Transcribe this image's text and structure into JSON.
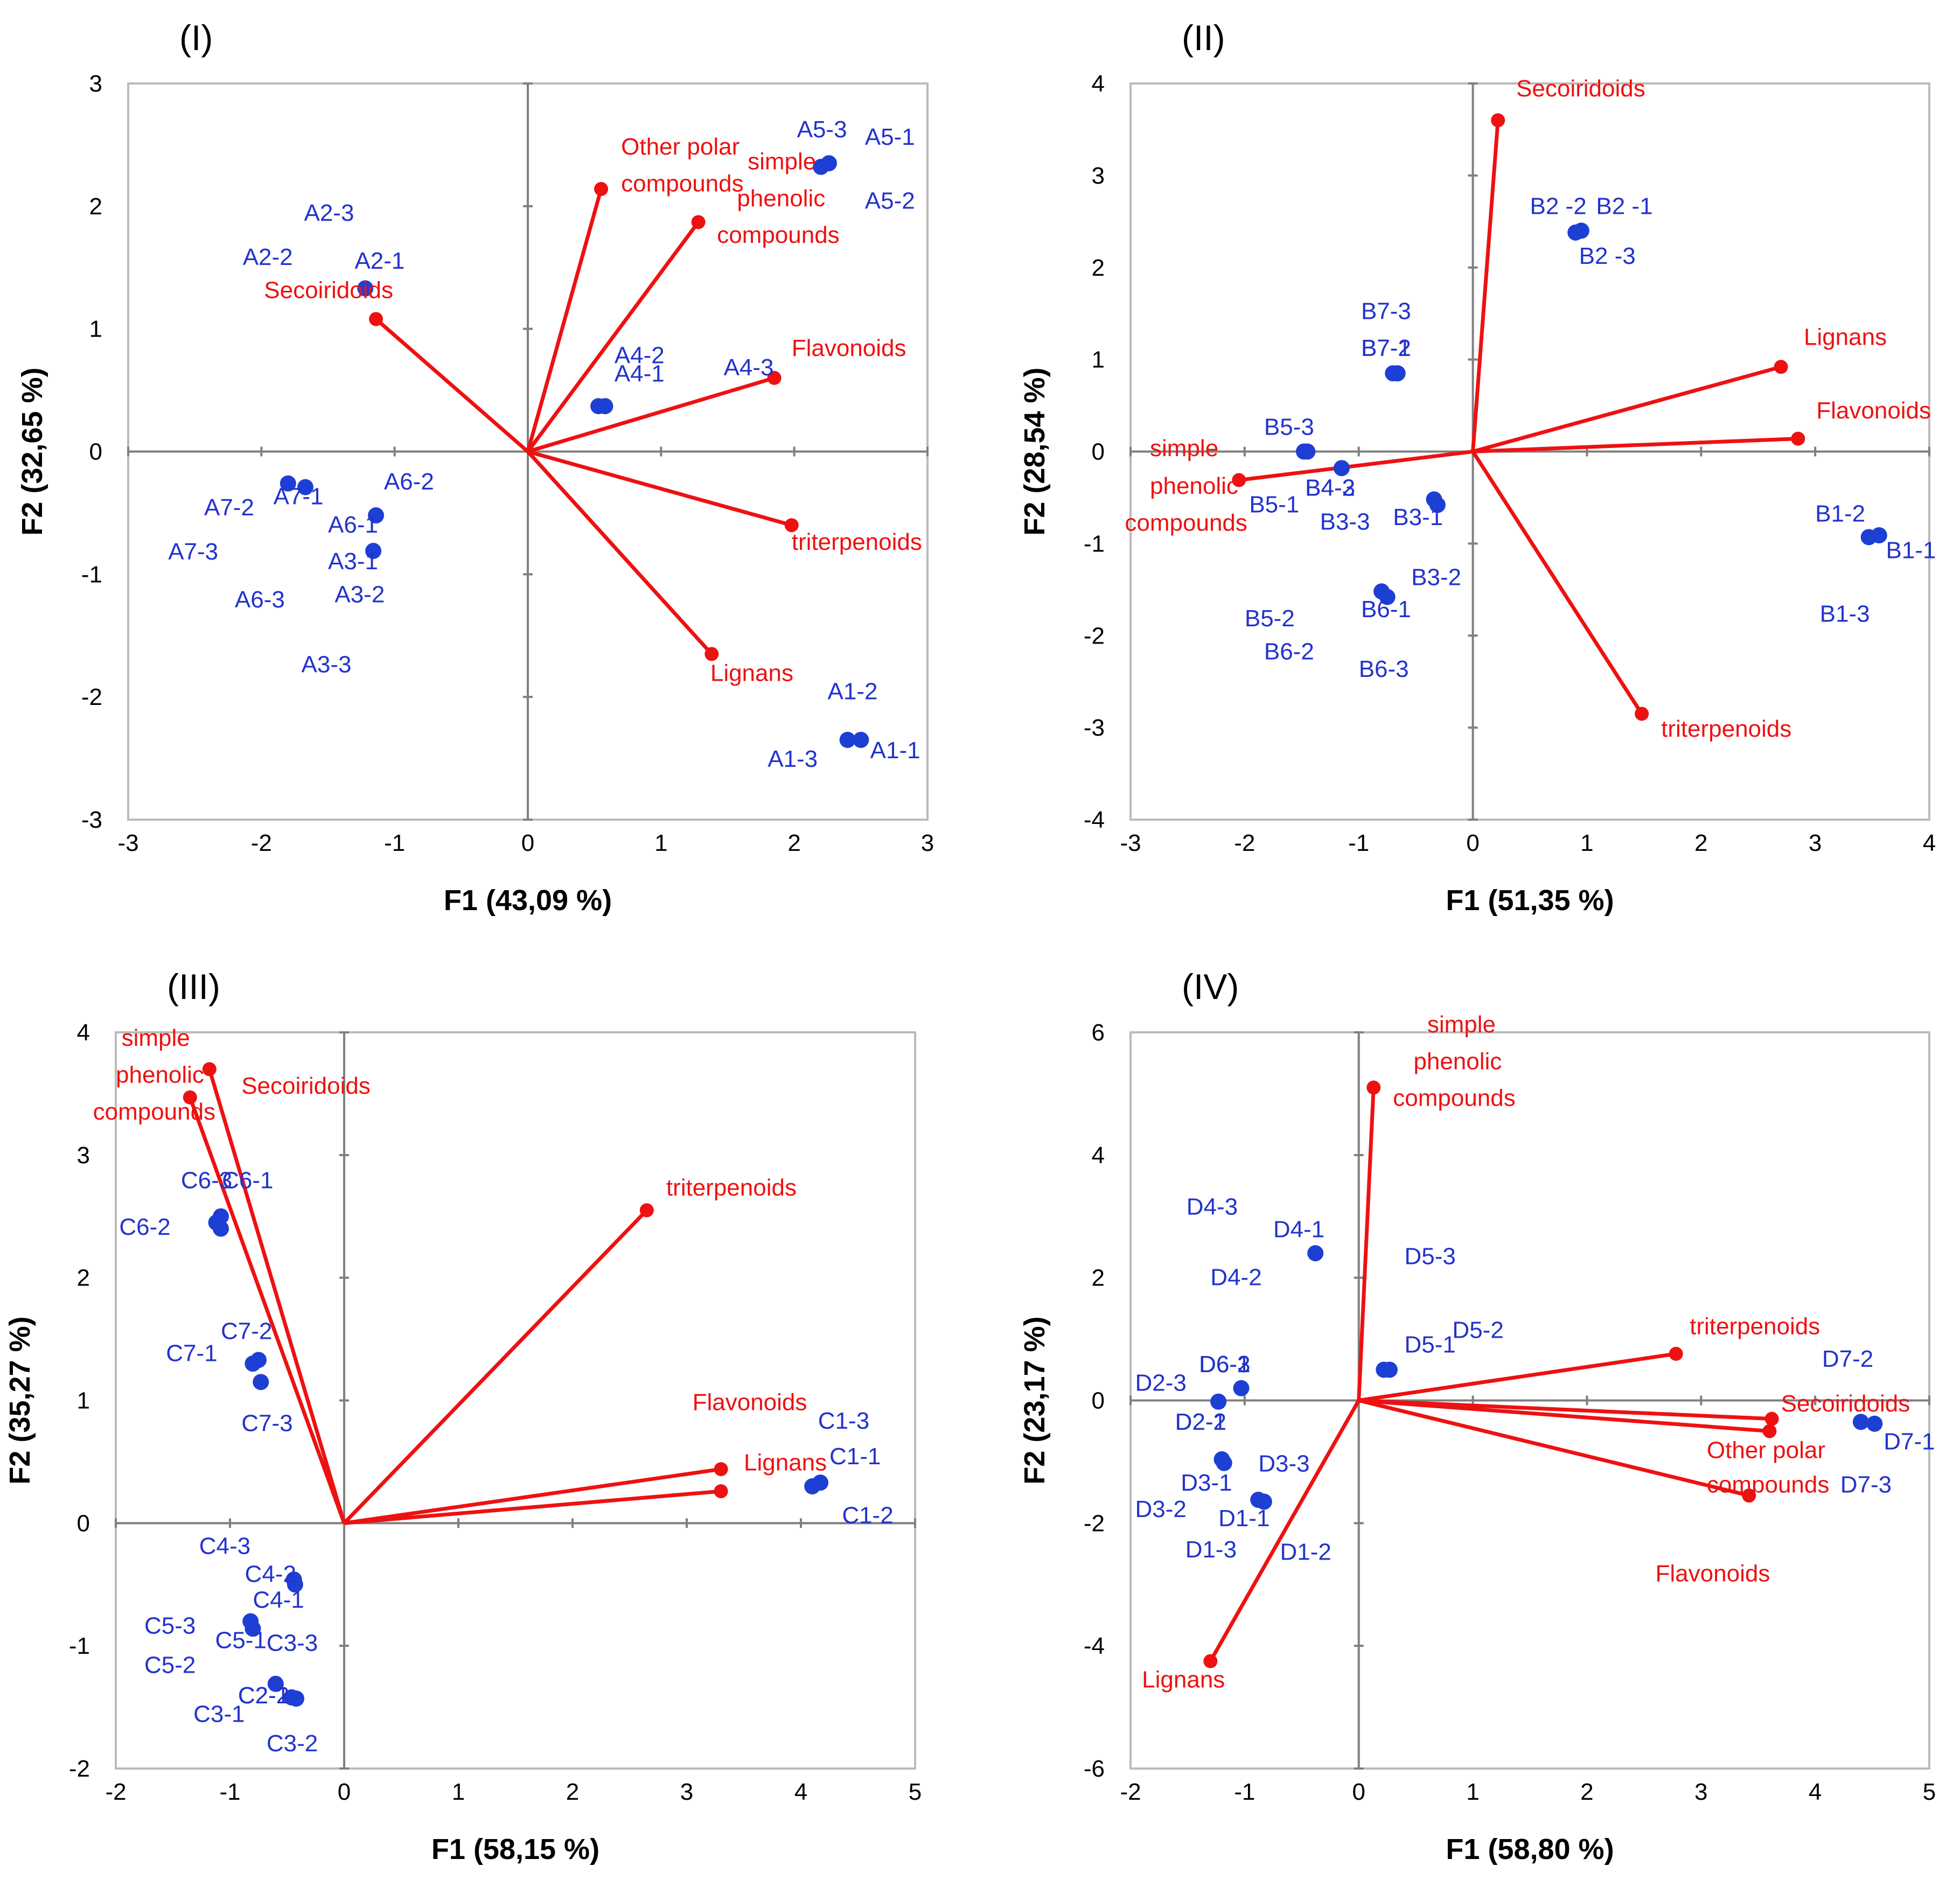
{
  "chart_data": [
    {
      "type": "scatter",
      "title": "(I)",
      "xlabel": "F1 (43,09 %)",
      "ylabel": "F2 (32,65 %)",
      "xlim": [
        -3,
        3
      ],
      "ylim": [
        -3,
        3
      ],
      "xticks": [
        -3,
        -2,
        -1,
        0,
        1,
        2,
        3
      ],
      "yticks": [
        -3,
        -2,
        -1,
        0,
        1,
        2,
        3
      ],
      "x_tick_labels": [
        "-3",
        "-2",
        "-1",
        "0",
        "1",
        "2",
        "3"
      ],
      "y_tick_labels": [
        "-3",
        "-2",
        "-1",
        "0",
        "1",
        "2",
        "3"
      ],
      "grid": false,
      "points": [
        {
          "x": 0.53,
          "y": 0.37
        },
        {
          "x": 0.58,
          "y": 0.37
        },
        {
          "x": 2.2,
          "y": 2.32
        },
        {
          "x": 2.26,
          "y": 2.35
        },
        {
          "x": -1.22,
          "y": 1.33
        },
        {
          "x": -1.8,
          "y": -0.26
        },
        {
          "x": -1.67,
          "y": -0.29
        },
        {
          "x": -1.14,
          "y": -0.52
        },
        {
          "x": -1.16,
          "y": -0.81
        },
        {
          "x": 2.4,
          "y": -2.35
        },
        {
          "x": 2.5,
          "y": -2.35
        }
      ],
      "point_labels": [
        {
          "text": "A5-3",
          "x": 2.02,
          "y": 2.56
        },
        {
          "text": "A5-1",
          "x": 2.53,
          "y": 2.5
        },
        {
          "text": "A5-2",
          "x": 2.53,
          "y": 1.98
        },
        {
          "text": "A2-3",
          "x": -1.68,
          "y": 1.88
        },
        {
          "text": "A2-2",
          "x": -2.14,
          "y": 1.52
        },
        {
          "text": "A2-1",
          "x": -1.3,
          "y": 1.49
        },
        {
          "text": "A4-2",
          "x": 0.65,
          "y": 0.72
        },
        {
          "text": "A4-1",
          "x": 0.65,
          "y": 0.57
        },
        {
          "text": "A4-3",
          "x": 1.47,
          "y": 0.62
        },
        {
          "text": "A6-2",
          "x": -1.08,
          "y": -0.31
        },
        {
          "text": "A7-1",
          "x": -1.91,
          "y": -0.43
        },
        {
          "text": "A7-2",
          "x": -2.43,
          "y": -0.52
        },
        {
          "text": "A6-1",
          "x": -1.5,
          "y": -0.66
        },
        {
          "text": "A7-3",
          "x": -2.7,
          "y": -0.88
        },
        {
          "text": "A3-1",
          "x": -1.5,
          "y": -0.96
        },
        {
          "text": "A6-3",
          "x": -2.2,
          "y": -1.27
        },
        {
          "text": "A3-2",
          "x": -1.45,
          "y": -1.23
        },
        {
          "text": "A3-3",
          "x": -1.7,
          "y": -1.8
        },
        {
          "text": "A1-2",
          "x": 2.25,
          "y": -2.02
        },
        {
          "text": "A1-1",
          "x": 2.57,
          "y": -2.5
        },
        {
          "text": "A1-3",
          "x": 1.8,
          "y": -2.57
        }
      ],
      "vectors": [
        {
          "x": 0.55,
          "y": 2.14
        },
        {
          "x": 1.28,
          "y": 1.87
        },
        {
          "x": -1.14,
          "y": 1.08
        },
        {
          "x": 1.85,
          "y": 0.6
        },
        {
          "x": 1.98,
          "y": -0.6
        },
        {
          "x": 1.38,
          "y": -1.65
        }
      ],
      "vector_labels": [
        {
          "text": "Other polar",
          "x": 0.7,
          "y": 2.42
        },
        {
          "text": "compounds",
          "x": 0.7,
          "y": 2.12
        },
        {
          "text": "simple",
          "x": 1.65,
          "y": 2.3
        },
        {
          "text": "phenolic",
          "x": 1.57,
          "y": 2.0
        },
        {
          "text": "compounds",
          "x": 1.42,
          "y": 1.7
        },
        {
          "text": "Secoiridoids",
          "x": -1.98,
          "y": 1.25
        },
        {
          "text": "Flavonoids",
          "x": 1.98,
          "y": 0.78
        },
        {
          "text": "triterpenoids",
          "x": 1.98,
          "y": -0.8
        },
        {
          "text": "Lignans",
          "x": 1.37,
          "y": -1.87
        }
      ]
    },
    {
      "type": "scatter",
      "title": "(II)",
      "xlabel": "F1 (51,35 %)",
      "ylabel": "F2 (28,54 %)",
      "xlim": [
        -3,
        4
      ],
      "ylim": [
        -4,
        4
      ],
      "xticks": [
        -3,
        -2,
        -1,
        0,
        1,
        2,
        3,
        4
      ],
      "yticks": [
        -4,
        -3,
        -2,
        -1,
        0,
        1,
        2,
        3,
        4
      ],
      "x_tick_labels": [
        "-3",
        "-2",
        "-1",
        "0",
        "1",
        "2",
        "3",
        "4"
      ],
      "y_tick_labels": [
        "-4",
        "-3",
        "-2",
        "-1",
        "0",
        "1",
        "2",
        "3",
        "4"
      ],
      "grid": false,
      "points": [
        {
          "x": 0.9,
          "y": 2.38
        },
        {
          "x": 0.95,
          "y": 2.4
        },
        {
          "x": -0.7,
          "y": 0.85
        },
        {
          "x": -0.66,
          "y": 0.85
        },
        {
          "x": -1.48,
          "y": 0.0
        },
        {
          "x": -1.45,
          "y": 0.0
        },
        {
          "x": -1.15,
          "y": -0.18
        },
        {
          "x": -0.34,
          "y": -0.52
        },
        {
          "x": -0.31,
          "y": -0.58
        },
        {
          "x": -0.8,
          "y": -1.52
        },
        {
          "x": -0.75,
          "y": -1.58
        },
        {
          "x": 3.47,
          "y": -0.93
        },
        {
          "x": 3.56,
          "y": -0.91
        }
      ],
      "point_labels": [
        {
          "text": "B2 -2",
          "x": 0.5,
          "y": 2.58
        },
        {
          "text": "B2 -1",
          "x": 1.08,
          "y": 2.58
        },
        {
          "text": "B2 -3",
          "x": 0.93,
          "y": 2.04
        },
        {
          "text": "B7-3",
          "x": -0.98,
          "y": 1.44
        },
        {
          "text": "B7-2",
          "x": -0.98,
          "y": 1.04
        },
        {
          "text": "B7-1",
          "x": -0.98,
          "y": 1.04
        },
        {
          "text": "B5-3",
          "x": -1.83,
          "y": 0.18
        },
        {
          "text": "B4-2",
          "x": -1.47,
          "y": -0.48
        },
        {
          "text": "B4-3",
          "x": -1.47,
          "y": -0.48
        },
        {
          "text": "B5-1",
          "x": -1.96,
          "y": -0.66
        },
        {
          "text": "B3-3",
          "x": -1.34,
          "y": -0.85
        },
        {
          "text": "B3-1",
          "x": -0.7,
          "y": -0.8
        },
        {
          "text": "B1-2",
          "x": 3.0,
          "y": -0.76
        },
        {
          "text": "B1-1",
          "x": 3.62,
          "y": -1.16
        },
        {
          "text": "B3-2",
          "x": -0.54,
          "y": -1.45
        },
        {
          "text": "B5-2",
          "x": -2.0,
          "y": -1.9
        },
        {
          "text": "B6-1",
          "x": -0.98,
          "y": -1.8
        },
        {
          "text": "B1-3",
          "x": 3.04,
          "y": -1.85
        },
        {
          "text": "B6-2",
          "x": -1.83,
          "y": -2.26
        },
        {
          "text": "B6-3",
          "x": -1.0,
          "y": -2.45
        }
      ],
      "vectors": [
        {
          "x": 0.22,
          "y": 3.6
        },
        {
          "x": 2.7,
          "y": 0.92
        },
        {
          "x": 2.85,
          "y": 0.14
        },
        {
          "x": -2.05,
          "y": -0.31
        },
        {
          "x": 1.48,
          "y": -2.85
        }
      ],
      "vector_labels": [
        {
          "text": "Secoiridoids",
          "x": 0.38,
          "y": 3.86
        },
        {
          "text": "Lignans",
          "x": 2.9,
          "y": 1.16
        },
        {
          "text": "Flavonoids",
          "x": 3.01,
          "y": 0.36
        },
        {
          "text": "simple",
          "x": -2.83,
          "y": -0.05
        },
        {
          "text": "phenolic",
          "x": -2.83,
          "y": -0.46
        },
        {
          "text": "compounds",
          "x": -3.05,
          "y": -0.86
        },
        {
          "text": "triterpenoids",
          "x": 1.65,
          "y": -3.1
        }
      ]
    },
    {
      "type": "scatter",
      "title": "(III)",
      "xlabel": "F1 (58,15 %)",
      "ylabel": "F2 (35,27 %)",
      "xlim": [
        -2,
        5
      ],
      "ylim": [
        -2,
        4
      ],
      "xticks": [
        -2,
        -1,
        0,
        1,
        2,
        3,
        4,
        5
      ],
      "yticks": [
        -2,
        -1,
        0,
        1,
        2,
        3,
        4
      ],
      "x_tick_labels": [
        "-2",
        "-1",
        "0",
        "1",
        "2",
        "3",
        "4",
        "5"
      ],
      "y_tick_labels": [
        "-2",
        "-1",
        "0",
        "1",
        "2",
        "3",
        "4"
      ],
      "grid": false,
      "points": [
        {
          "x": -1.12,
          "y": 2.45
        },
        {
          "x": -1.08,
          "y": 2.5
        },
        {
          "x": -1.08,
          "y": 2.4
        },
        {
          "x": -0.8,
          "y": 1.3
        },
        {
          "x": -0.75,
          "y": 1.33
        },
        {
          "x": -0.73,
          "y": 1.15
        },
        {
          "x": 4.1,
          "y": 0.3
        },
        {
          "x": 4.17,
          "y": 0.33
        },
        {
          "x": -0.44,
          "y": -0.46
        },
        {
          "x": -0.43,
          "y": -0.5
        },
        {
          "x": -0.82,
          "y": -0.8
        },
        {
          "x": -0.8,
          "y": -0.86
        },
        {
          "x": -0.6,
          "y": -1.31
        },
        {
          "x": -0.46,
          "y": -1.42
        },
        {
          "x": -0.42,
          "y": -1.43
        }
      ],
      "point_labels": [
        {
          "text": "C6-3",
          "x": -1.43,
          "y": 2.73
        },
        {
          "text": "C6-1",
          "x": -1.07,
          "y": 2.73
        },
        {
          "text": "C6-2",
          "x": -1.97,
          "y": 2.35
        },
        {
          "text": "C7-2",
          "x": -1.08,
          "y": 1.5
        },
        {
          "text": "C7-1",
          "x": -1.56,
          "y": 1.32
        },
        {
          "text": "C7-3",
          "x": -0.9,
          "y": 0.75
        },
        {
          "text": "C1-3",
          "x": 4.15,
          "y": 0.77
        },
        {
          "text": "C1-1",
          "x": 4.25,
          "y": 0.48
        },
        {
          "text": "C1-2",
          "x": 4.36,
          "y": 0.0
        },
        {
          "text": "C4-3",
          "x": -1.27,
          "y": -0.25
        },
        {
          "text": "C4-2",
          "x": -0.87,
          "y": -0.48
        },
        {
          "text": "C4-1",
          "x": -0.8,
          "y": -0.69
        },
        {
          "text": "C5-3",
          "x": -1.75,
          "y": -0.9
        },
        {
          "text": "C5-1",
          "x": -1.13,
          "y": -1.02
        },
        {
          "text": "C3-3",
          "x": -0.68,
          "y": -1.04
        },
        {
          "text": "C5-2",
          "x": -1.75,
          "y": -1.22
        },
        {
          "text": "C2-2",
          "x": -0.93,
          "y": -1.47
        },
        {
          "text": "C2-1",
          "x": -0.93,
          "y": -1.47
        },
        {
          "text": "C3-1",
          "x": -1.32,
          "y": -1.62
        },
        {
          "text": "C3-2",
          "x": -0.68,
          "y": -1.86
        }
      ],
      "vectors": [
        {
          "x": -1.18,
          "y": 3.7
        },
        {
          "x": -1.35,
          "y": 3.47
        },
        {
          "x": 2.65,
          "y": 2.55
        },
        {
          "x": 3.3,
          "y": 0.44
        },
        {
          "x": 3.3,
          "y": 0.26
        }
      ],
      "vector_labels": [
        {
          "text": "simple",
          "x": -1.95,
          "y": 3.89
        },
        {
          "text": "phenolic",
          "x": -2.0,
          "y": 3.59
        },
        {
          "text": "compounds",
          "x": -2.2,
          "y": 3.29
        },
        {
          "text": "Secoiridoids",
          "x": -0.9,
          "y": 3.5
        },
        {
          "text": "triterpenoids",
          "x": 2.82,
          "y": 2.67
        },
        {
          "text": "Flavonoids",
          "x": 3.05,
          "y": 0.92
        },
        {
          "text": "Lignans",
          "x": 3.5,
          "y": 0.43
        }
      ]
    },
    {
      "type": "scatter",
      "title": "(IV)",
      "xlabel": "F1 (58,80 %)",
      "ylabel": "F2 (23,17 %)",
      "xlim": [
        -2,
        5
      ],
      "ylim": [
        -6,
        6
      ],
      "xticks": [
        -2,
        -1,
        0,
        1,
        2,
        3,
        4,
        5
      ],
      "yticks": [
        -6,
        -4,
        -2,
        0,
        2,
        4,
        6
      ],
      "x_tick_labels": [
        "-2",
        "-1",
        "0",
        "1",
        "2",
        "3",
        "4",
        "5"
      ],
      "y_tick_labels": [
        "-6",
        "-4",
        "-2",
        "0",
        "2",
        "4",
        "6"
      ],
      "grid": false,
      "points": [
        {
          "x": -0.38,
          "y": 2.4
        },
        {
          "x": 0.22,
          "y": 0.5
        },
        {
          "x": 0.27,
          "y": 0.5
        },
        {
          "x": -1.03,
          "y": 0.2
        },
        {
          "x": -1.23,
          "y": -0.02
        },
        {
          "x": -1.2,
          "y": -0.96
        },
        {
          "x": -1.18,
          "y": -1.02
        },
        {
          "x": -0.88,
          "y": -1.62
        },
        {
          "x": -0.83,
          "y": -1.65
        },
        {
          "x": 4.4,
          "y": -0.35
        },
        {
          "x": 4.52,
          "y": -0.38
        }
      ],
      "point_labels": [
        {
          "text": "D4-3",
          "x": -1.51,
          "y": 3.03
        },
        {
          "text": "D4-1",
          "x": -0.75,
          "y": 2.66
        },
        {
          "text": "D5-3",
          "x": 0.4,
          "y": 2.22
        },
        {
          "text": "D4-2",
          "x": -1.3,
          "y": 1.88
        },
        {
          "text": "D5-2",
          "x": 0.82,
          "y": 1.02
        },
        {
          "text": "D5-1",
          "x": 0.4,
          "y": 0.78
        },
        {
          "text": "D6-1",
          "x": -1.4,
          "y": 0.46
        },
        {
          "text": "D6-2",
          "x": -1.4,
          "y": 0.46
        },
        {
          "text": "D6-3",
          "x": -1.4,
          "y": 0.46
        },
        {
          "text": "D2-3",
          "x": -1.96,
          "y": 0.16
        },
        {
          "text": "D2-1",
          "x": -1.61,
          "y": -0.48
        },
        {
          "text": "D2-2",
          "x": -1.61,
          "y": -0.48
        },
        {
          "text": "D3-3",
          "x": -0.88,
          "y": -1.16
        },
        {
          "text": "D3-1",
          "x": -1.56,
          "y": -1.47
        },
        {
          "text": "D3-2",
          "x": -1.96,
          "y": -1.9
        },
        {
          "text": "D1-1",
          "x": -1.23,
          "y": -2.05
        },
        {
          "text": "D1-3",
          "x": -1.52,
          "y": -2.56
        },
        {
          "text": "D1-2",
          "x": -0.69,
          "y": -2.6
        },
        {
          "text": "D7-2",
          "x": 4.06,
          "y": 0.55
        },
        {
          "text": "D7-1",
          "x": 4.6,
          "y": -0.8
        },
        {
          "text": "D7-3",
          "x": 4.22,
          "y": -1.5
        }
      ],
      "vectors": [
        {
          "x": 0.13,
          "y": 5.1
        },
        {
          "x": 2.78,
          "y": 0.76
        },
        {
          "x": 3.62,
          "y": -0.3
        },
        {
          "x": 3.6,
          "y": -0.5
        },
        {
          "x": 3.42,
          "y": -1.55
        },
        {
          "x": -1.3,
          "y": -4.25
        }
      ],
      "vector_labels": [
        {
          "text": "simple",
          "x": 0.6,
          "y": 6.0
        },
        {
          "text": "phenolic",
          "x": 0.48,
          "y": 5.4
        },
        {
          "text": "compounds",
          "x": 0.3,
          "y": 4.8
        },
        {
          "text": "triterpenoids",
          "x": 2.9,
          "y": 1.08
        },
        {
          "text": "Secoiridoids",
          "x": 3.7,
          "y": -0.18
        },
        {
          "text": "Other polar",
          "x": 3.05,
          "y": -0.94
        },
        {
          "text": "compounds",
          "x": 3.05,
          "y": -1.5
        },
        {
          "text": "Flavonoids",
          "x": 2.6,
          "y": -2.95
        },
        {
          "text": "Lignans",
          "x": -1.9,
          "y": -4.68
        }
      ]
    }
  ]
}
